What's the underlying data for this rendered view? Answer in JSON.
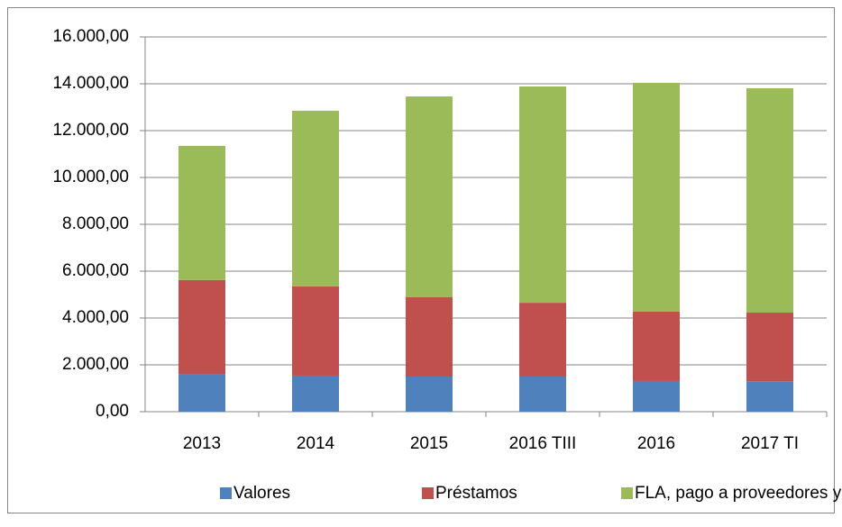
{
  "chart_data": {
    "type": "stacked_bar",
    "categories": [
      "2013",
      "2014",
      "2015",
      "2016 TIII",
      "2016",
      "2017 TI"
    ],
    "series": [
      {
        "name": "Valores",
        "color": "#4f81bd",
        "values": [
          1600,
          1540,
          1500,
          1500,
          1310,
          1300
        ]
      },
      {
        "name": "Préstamos",
        "color": "#c0504d",
        "values": [
          4020,
          3810,
          3385,
          3150,
          2960,
          2930
        ]
      },
      {
        "name": "FLA, pago a proveedores y otros",
        "color": "#9bbb59",
        "values": [
          5730,
          7500,
          8575,
          9235,
          9770,
          9580
        ]
      }
    ],
    "ylim": [
      0,
      16000
    ],
    "yticks": [
      {
        "value": 0,
        "label": "0,00"
      },
      {
        "value": 2000,
        "label": "2.000,00"
      },
      {
        "value": 4000,
        "label": "4.000,00"
      },
      {
        "value": 6000,
        "label": "6.000,00"
      },
      {
        "value": 8000,
        "label": "8.000,00"
      },
      {
        "value": 10000,
        "label": "10.000,00"
      },
      {
        "value": 12000,
        "label": "12.000,00"
      },
      {
        "value": 14000,
        "label": "14.000,00"
      },
      {
        "value": 16000,
        "label": "16.000,00"
      }
    ],
    "grid": true,
    "legend": "bottom"
  }
}
